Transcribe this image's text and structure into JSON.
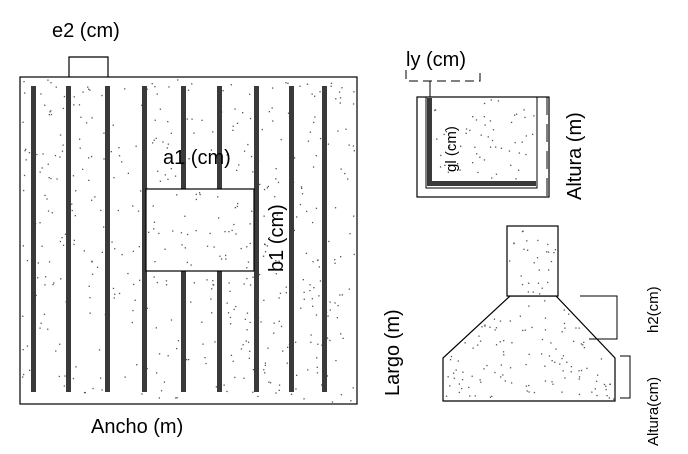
{
  "plan_view": {
    "e2_label": "e2 (cm)",
    "a1_label": "a1 (cm)",
    "b1_label": "b1 (cm)",
    "ancho_label": "Ancho (m)",
    "largo_label": "Largo (m)"
  },
  "section_detail": {
    "ly_label": "ly (cm)",
    "gl_label": "gl (cm)",
    "altura_label": "Altura (m)"
  },
  "elevation": {
    "h2_label": "h2(cm)",
    "altura_label": "Altura(cm)"
  },
  "colors": {
    "rebar": "#3a3a3a",
    "line": "#000000",
    "speckle": "#555555"
  }
}
